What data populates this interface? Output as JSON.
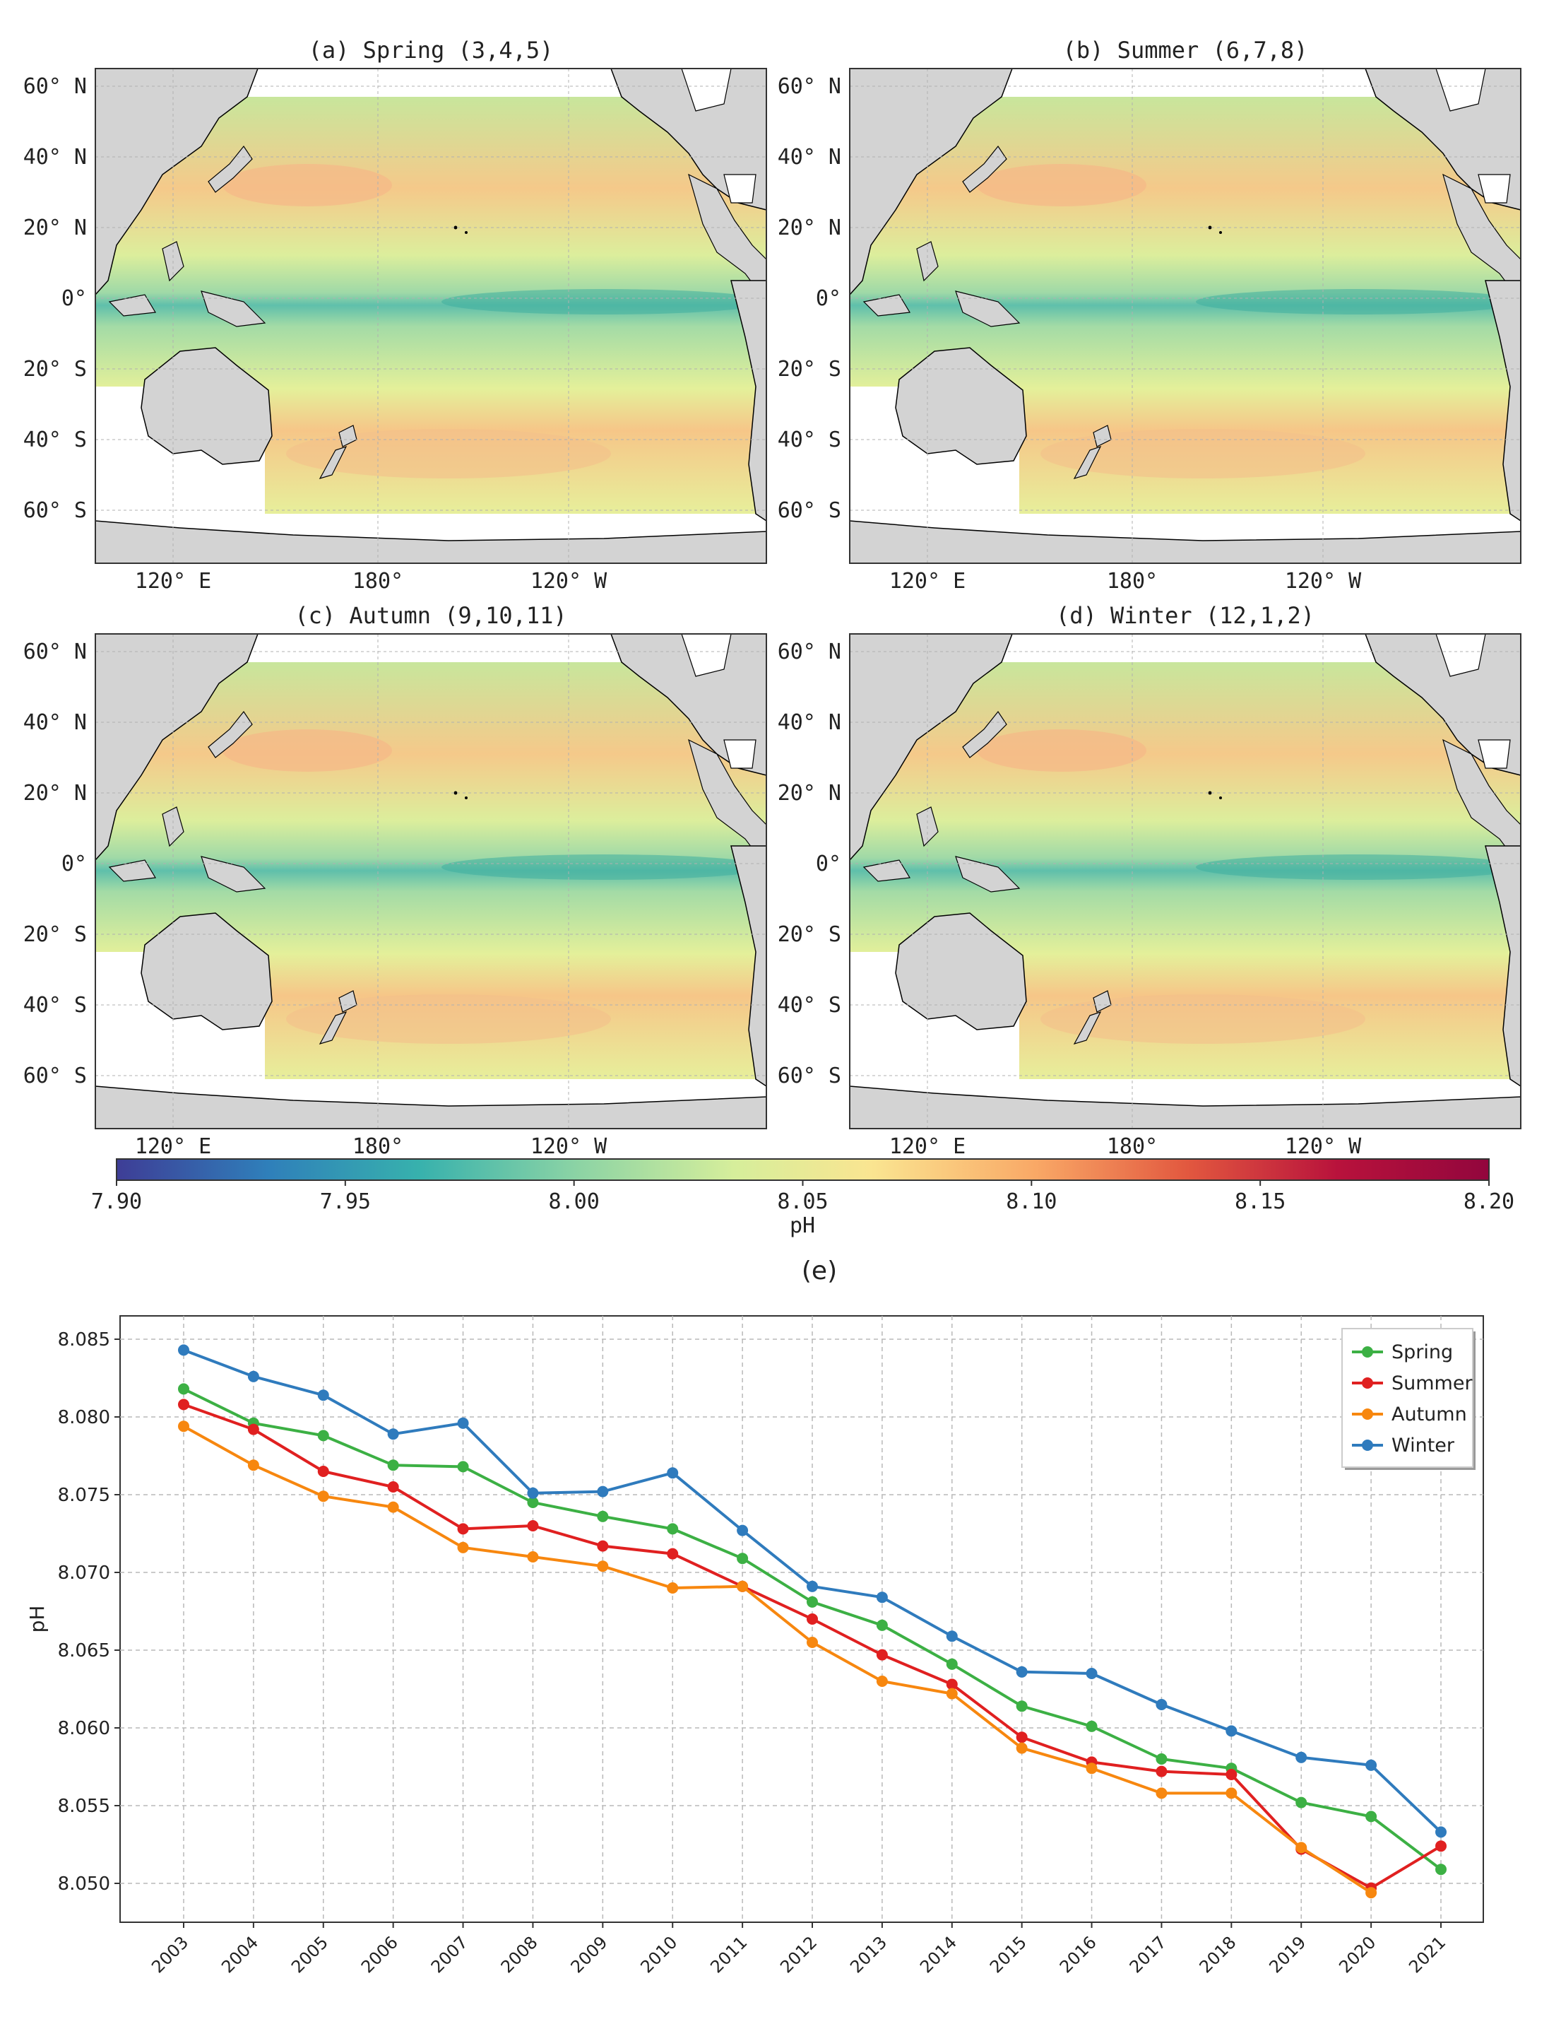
{
  "colors": {
    "ocean_low": "#3f4a9e",
    "ocean_mid": "#8fd3a6",
    "ocean_neutral": "#e6f19a",
    "ocean_high": "#f7b27a",
    "land": "#d3d3d3",
    "frame": "#333333",
    "grid": "#b8b8b8"
  },
  "maps": [
    {
      "title": "(a) Spring (3,4,5)",
      "lat_labels": [
        "60° N",
        "40° N",
        "20° N",
        "0°",
        "20° S",
        "40° S",
        "60° S"
      ],
      "lon_labels": [
        "120° E",
        "180°",
        "120° W"
      ]
    },
    {
      "title": "(b) Summer (6,7,8)",
      "lat_labels": [
        "60° N",
        "40° N",
        "20° N",
        "0°",
        "20° S",
        "40° S",
        "60° S"
      ],
      "lon_labels": [
        "120° E",
        "180°",
        "120° W"
      ]
    },
    {
      "title": "(c) Autumn (9,10,11)",
      "lat_labels": [
        "60° N",
        "40° N",
        "20° N",
        "0°",
        "20° S",
        "40° S",
        "60° S"
      ],
      "lon_labels": [
        "120° E",
        "180°",
        "120° W"
      ]
    },
    {
      "title": "(d) Winter (12,1,2)",
      "lat_labels": [
        "60° N",
        "40° N",
        "20° N",
        "0°",
        "20° S",
        "40° S",
        "60° S"
      ],
      "lon_labels": [
        "120° E",
        "180°",
        "120° W"
      ]
    }
  ],
  "colorbar": {
    "label": "pH",
    "range": [
      7.9,
      8.2
    ],
    "ticks": [
      "7.90",
      "7.95",
      "8.00",
      "8.05",
      "8.10",
      "8.15",
      "8.20"
    ],
    "colors": [
      "#3e3d96",
      "#2f7fba",
      "#37b1ad",
      "#88d2a5",
      "#d6ee9b",
      "#fae591",
      "#f9a866",
      "#e2583f",
      "#b8123c",
      "#92063d"
    ]
  },
  "panel_e_label": "(e)",
  "chart_data": {
    "type": "line",
    "x": [
      "2003",
      "2004",
      "2005",
      "2006",
      "2007",
      "2008",
      "2009",
      "2010",
      "2011",
      "2012",
      "2013",
      "2014",
      "2015",
      "2016",
      "2017",
      "2018",
      "2019",
      "2020",
      "2021"
    ],
    "ylabel": "pH",
    "ylim": [
      8.0475,
      8.0865
    ],
    "yticks": [
      "8.050",
      "8.055",
      "8.060",
      "8.065",
      "8.070",
      "8.075",
      "8.080",
      "8.085"
    ],
    "grid": true,
    "legend_position": "top-right",
    "series": [
      {
        "name": "Spring",
        "color": "#3cb044",
        "values": [
          8.0818,
          8.0796,
          8.0788,
          8.0769,
          8.0768,
          8.0745,
          8.0736,
          8.0728,
          8.0709,
          8.0681,
          8.0666,
          8.0641,
          8.0614,
          8.0601,
          8.058,
          8.0574,
          8.0552,
          8.0543,
          8.0509
        ]
      },
      {
        "name": "Summer",
        "color": "#e02020",
        "values": [
          8.0808,
          8.0792,
          8.0765,
          8.0755,
          8.0728,
          8.073,
          8.0717,
          8.0712,
          8.0691,
          8.067,
          8.0647,
          8.0628,
          8.0594,
          8.0578,
          8.0572,
          8.057,
          8.0522,
          8.0497,
          8.0524
        ]
      },
      {
        "name": "Autumn",
        "color": "#f7870f",
        "values": [
          8.0794,
          8.0769,
          8.0749,
          8.0742,
          8.0716,
          8.071,
          8.0704,
          8.069,
          8.0691,
          8.0655,
          8.063,
          8.0622,
          8.0587,
          8.0574,
          8.0558,
          8.0558,
          8.0523,
          8.0494,
          null
        ]
      },
      {
        "name": "Winter",
        "color": "#2f7bbd",
        "values": [
          8.0843,
          8.0826,
          8.0814,
          8.0789,
          8.0796,
          8.0751,
          8.0752,
          8.0764,
          8.0727,
          8.0691,
          8.0684,
          8.0659,
          8.0636,
          8.0635,
          8.0615,
          8.0598,
          8.0581,
          8.0576,
          8.0533
        ]
      }
    ]
  }
}
